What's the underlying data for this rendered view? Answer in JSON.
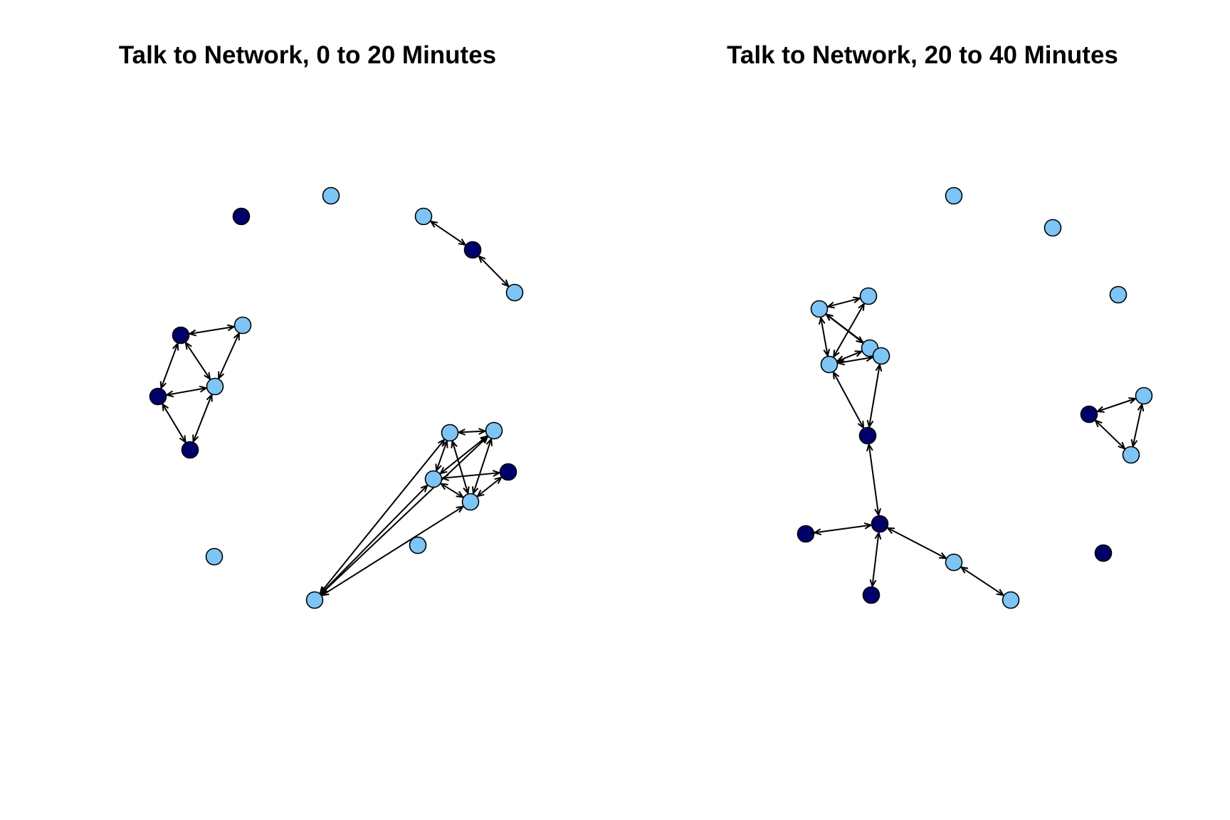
{
  "colors": {
    "dark": "#00006b",
    "light": "#7cc5f5",
    "edge": "#000000",
    "outline": "#000000"
  },
  "panels": [
    {
      "title": "Talk to Network, 0 to 20 Minutes",
      "nodes": [
        {
          "id": "a1",
          "group": "dark"
        },
        {
          "id": "a2",
          "group": "light"
        },
        {
          "id": "a3",
          "group": "light"
        },
        {
          "id": "a4",
          "group": "dark"
        },
        {
          "id": "a5",
          "group": "light"
        },
        {
          "id": "a6",
          "group": "dark"
        },
        {
          "id": "a7",
          "group": "light"
        },
        {
          "id": "a8",
          "group": "dark"
        },
        {
          "id": "a9",
          "group": "light"
        },
        {
          "id": "a10",
          "group": "dark"
        },
        {
          "id": "a11",
          "group": "light"
        },
        {
          "id": "a12",
          "group": "light"
        },
        {
          "id": "a13",
          "group": "light"
        },
        {
          "id": "a14",
          "group": "light"
        },
        {
          "id": "a15",
          "group": "light"
        },
        {
          "id": "a16",
          "group": "light"
        },
        {
          "id": "a17",
          "group": "dark"
        },
        {
          "id": "a18",
          "group": "light"
        }
      ],
      "edges": [
        [
          "a3",
          "a4"
        ],
        [
          "a4",
          "a5"
        ],
        [
          "a6",
          "a7"
        ],
        [
          "a6",
          "a9"
        ],
        [
          "a6",
          "a8"
        ],
        [
          "a7",
          "a9"
        ],
        [
          "a8",
          "a9"
        ],
        [
          "a8",
          "a10"
        ],
        [
          "a9",
          "a10"
        ],
        [
          "a12",
          "a13"
        ],
        [
          "a12",
          "a15"
        ],
        [
          "a12",
          "a16"
        ],
        [
          "a12",
          "a14"
        ],
        [
          "a13",
          "a15"
        ],
        [
          "a13",
          "a16"
        ],
        [
          "a13",
          "a14"
        ],
        [
          "a15",
          "a16"
        ],
        [
          "a15",
          "a14"
        ],
        [
          "a16",
          "a14"
        ],
        [
          "a15",
          "a17"
        ],
        [
          "a16",
          "a17"
        ]
      ]
    },
    {
      "title": "Talk to Network, 20 to 40 Minutes",
      "nodes": [
        {
          "id": "b1",
          "group": "light"
        },
        {
          "id": "b2",
          "group": "light"
        },
        {
          "id": "b3",
          "group": "light"
        },
        {
          "id": "b4",
          "group": "light"
        },
        {
          "id": "b5",
          "group": "light"
        },
        {
          "id": "b6",
          "group": "light"
        },
        {
          "id": "b7",
          "group": "light"
        },
        {
          "id": "b8",
          "group": "light"
        },
        {
          "id": "b9",
          "group": "dark"
        },
        {
          "id": "b10",
          "group": "light"
        },
        {
          "id": "b11",
          "group": "dark"
        },
        {
          "id": "b12",
          "group": "light"
        },
        {
          "id": "b13",
          "group": "dark"
        },
        {
          "id": "b14",
          "group": "dark"
        },
        {
          "id": "b15",
          "group": "light"
        },
        {
          "id": "b16",
          "group": "light"
        },
        {
          "id": "b17",
          "group": "dark"
        },
        {
          "id": "b18",
          "group": "dark"
        }
      ],
      "edges": [
        [
          "b5",
          "b4"
        ],
        [
          "b5",
          "b6"
        ],
        [
          "b5",
          "b7"
        ],
        [
          "b5",
          "b8"
        ],
        [
          "b4",
          "b7"
        ],
        [
          "b4",
          "b8"
        ],
        [
          "b6",
          "b7"
        ],
        [
          "b7",
          "b8"
        ],
        [
          "b7",
          "b9"
        ],
        [
          "b8",
          "b9"
        ],
        [
          "b13",
          "b9"
        ],
        [
          "b13",
          "b14"
        ],
        [
          "b13",
          "b17"
        ],
        [
          "b13",
          "b15"
        ],
        [
          "b15",
          "b16"
        ],
        [
          "b11",
          "b10"
        ],
        [
          "b11",
          "b12"
        ],
        [
          "b10",
          "b12"
        ]
      ]
    }
  ]
}
